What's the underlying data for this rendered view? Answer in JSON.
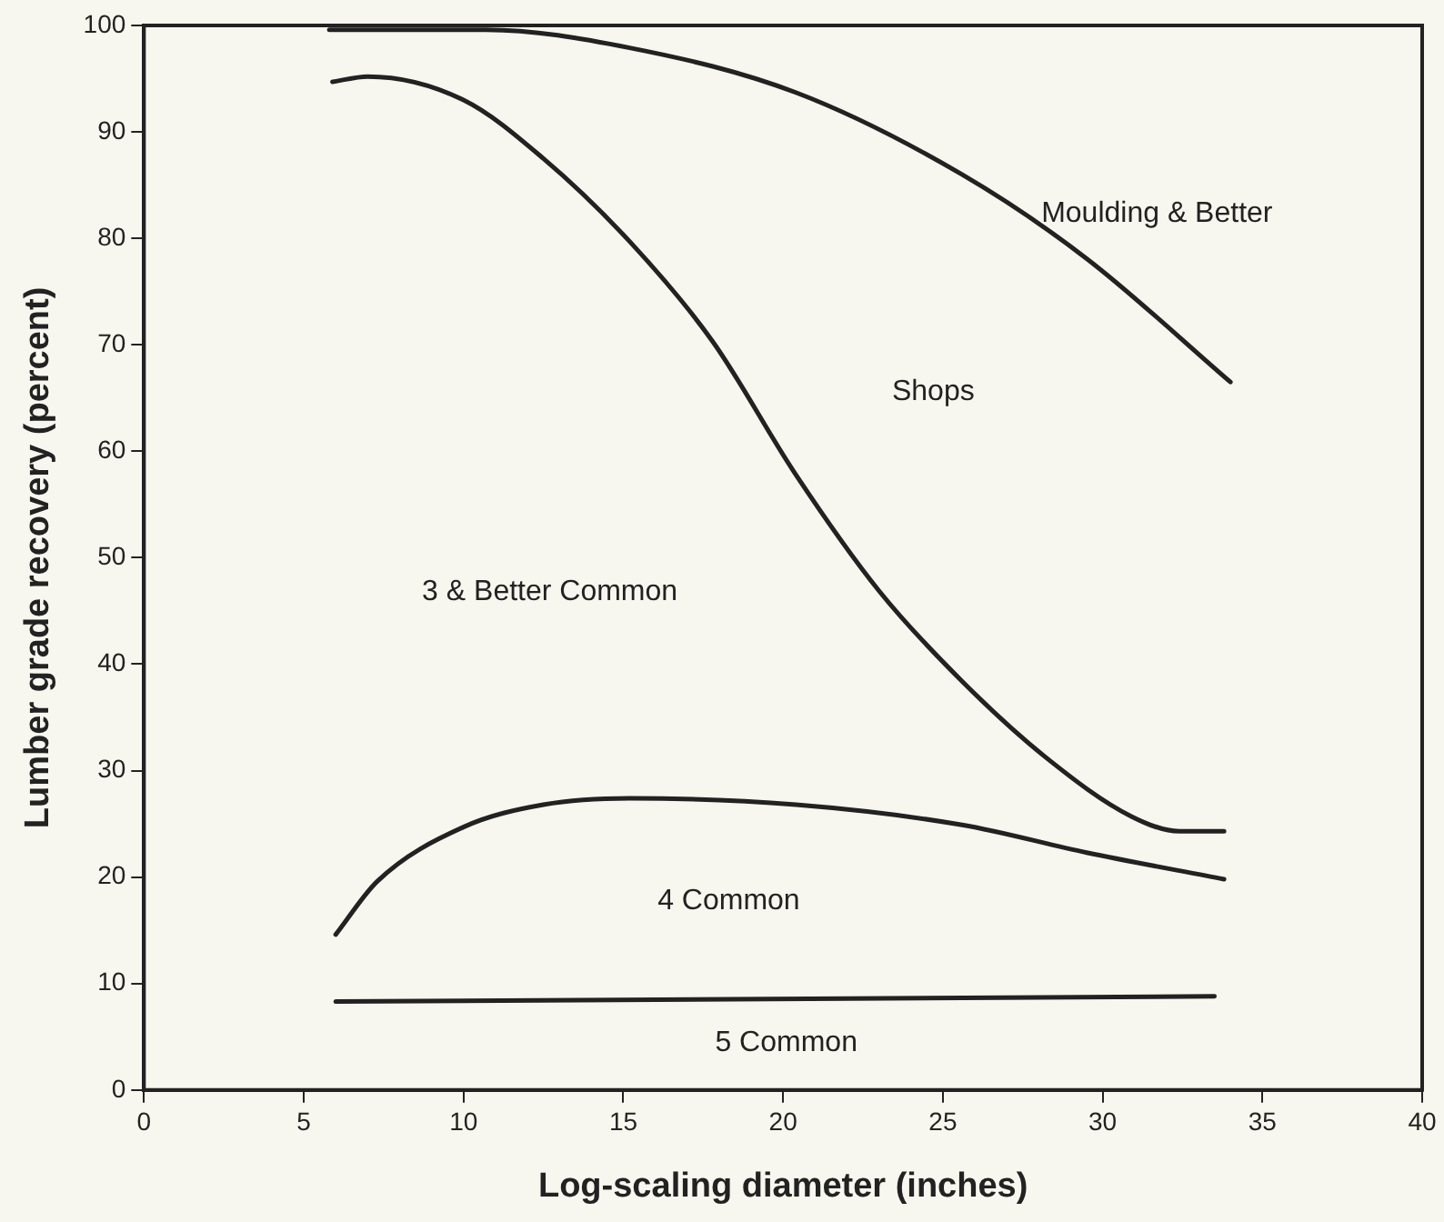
{
  "chart_data": {
    "type": "line",
    "xlabel": "Log-scaling diameter (inches)",
    "ylabel": "Lumber grade recovery (percent)",
    "xlim": [
      0,
      40
    ],
    "xticks": [
      0,
      5,
      10,
      15,
      20,
      25,
      30,
      35,
      40
    ],
    "ylim": [
      0,
      100
    ],
    "yticks": [
      0,
      10,
      20,
      30,
      40,
      50,
      60,
      70,
      80,
      90,
      100
    ],
    "grid": false,
    "legend": false,
    "marker": "none",
    "line_style": "solid",
    "series": [
      {
        "color": "#222222",
        "x": [
          5.8,
          10.7,
          15.2,
          20.4,
          25.6,
          29.5,
          34
        ],
        "values": [
          99.6,
          99.6,
          97.9,
          93.7,
          86,
          78.1,
          66.5
        ]
      },
      {
        "color": "#222222",
        "x": [
          5.9,
          7,
          10,
          12.5,
          15.2,
          17.8,
          20.4,
          23,
          25.6,
          28.2,
          30.9,
          32.4,
          33.8
        ],
        "values": [
          94.7,
          95.2,
          93,
          87.5,
          79.7,
          70.3,
          57.8,
          46.9,
          38.4,
          31.3,
          25.7,
          24.3,
          24.3
        ]
      },
      {
        "color": "#222222",
        "x": [
          6,
          7.3,
          10,
          12.5,
          15.2,
          20.4,
          25.6,
          29.5,
          33.8
        ],
        "values": [
          14.6,
          19.6,
          24.7,
          26.8,
          27.4,
          26.8,
          24.9,
          22.3,
          19.8
        ]
      },
      {
        "color": "#222222",
        "x": [
          6,
          33.5
        ],
        "values": [
          8.3,
          8.8
        ]
      }
    ],
    "annotations": [
      "Moulding & Better",
      "Shops",
      "3 & Better Common",
      "4 Common",
      "5 Common"
    ]
  }
}
